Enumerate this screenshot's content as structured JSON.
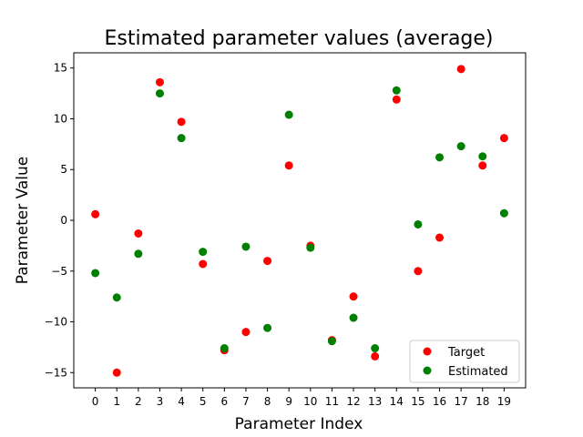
{
  "chart_data": {
    "type": "scatter",
    "title": "Estimated parameter values (average)",
    "xlabel": "Parameter Index",
    "ylabel": "Parameter Value",
    "x": [
      0,
      1,
      2,
      3,
      4,
      5,
      6,
      7,
      8,
      9,
      10,
      11,
      12,
      13,
      14,
      15,
      16,
      17,
      18,
      19
    ],
    "xticks": [
      0,
      1,
      2,
      3,
      4,
      5,
      6,
      7,
      8,
      9,
      10,
      11,
      12,
      13,
      14,
      15,
      16,
      17,
      18,
      19
    ],
    "yticks": [
      15,
      10,
      5,
      0,
      -5,
      -10,
      -15
    ],
    "xlim": [
      -1,
      20
    ],
    "ylim": [
      -16.5,
      16.5
    ],
    "grid": false,
    "legend": "lower-right",
    "series": [
      {
        "name": "Target",
        "color": "#ff0000",
        "values": [
          0.6,
          -15.0,
          -1.3,
          13.6,
          9.7,
          -4.3,
          -12.8,
          -11.0,
          -4.0,
          5.4,
          -2.5,
          -11.8,
          -7.5,
          -13.4,
          11.9,
          -5.0,
          -1.7,
          14.9,
          5.4,
          8.1
        ]
      },
      {
        "name": "Estimated",
        "color": "#008000",
        "values": [
          -5.2,
          -7.6,
          -3.3,
          12.5,
          8.1,
          -3.1,
          -12.6,
          -2.6,
          -10.6,
          10.4,
          -2.7,
          -11.9,
          -9.6,
          -12.6,
          12.8,
          -0.4,
          6.2,
          7.3,
          6.3,
          0.7
        ]
      }
    ]
  }
}
